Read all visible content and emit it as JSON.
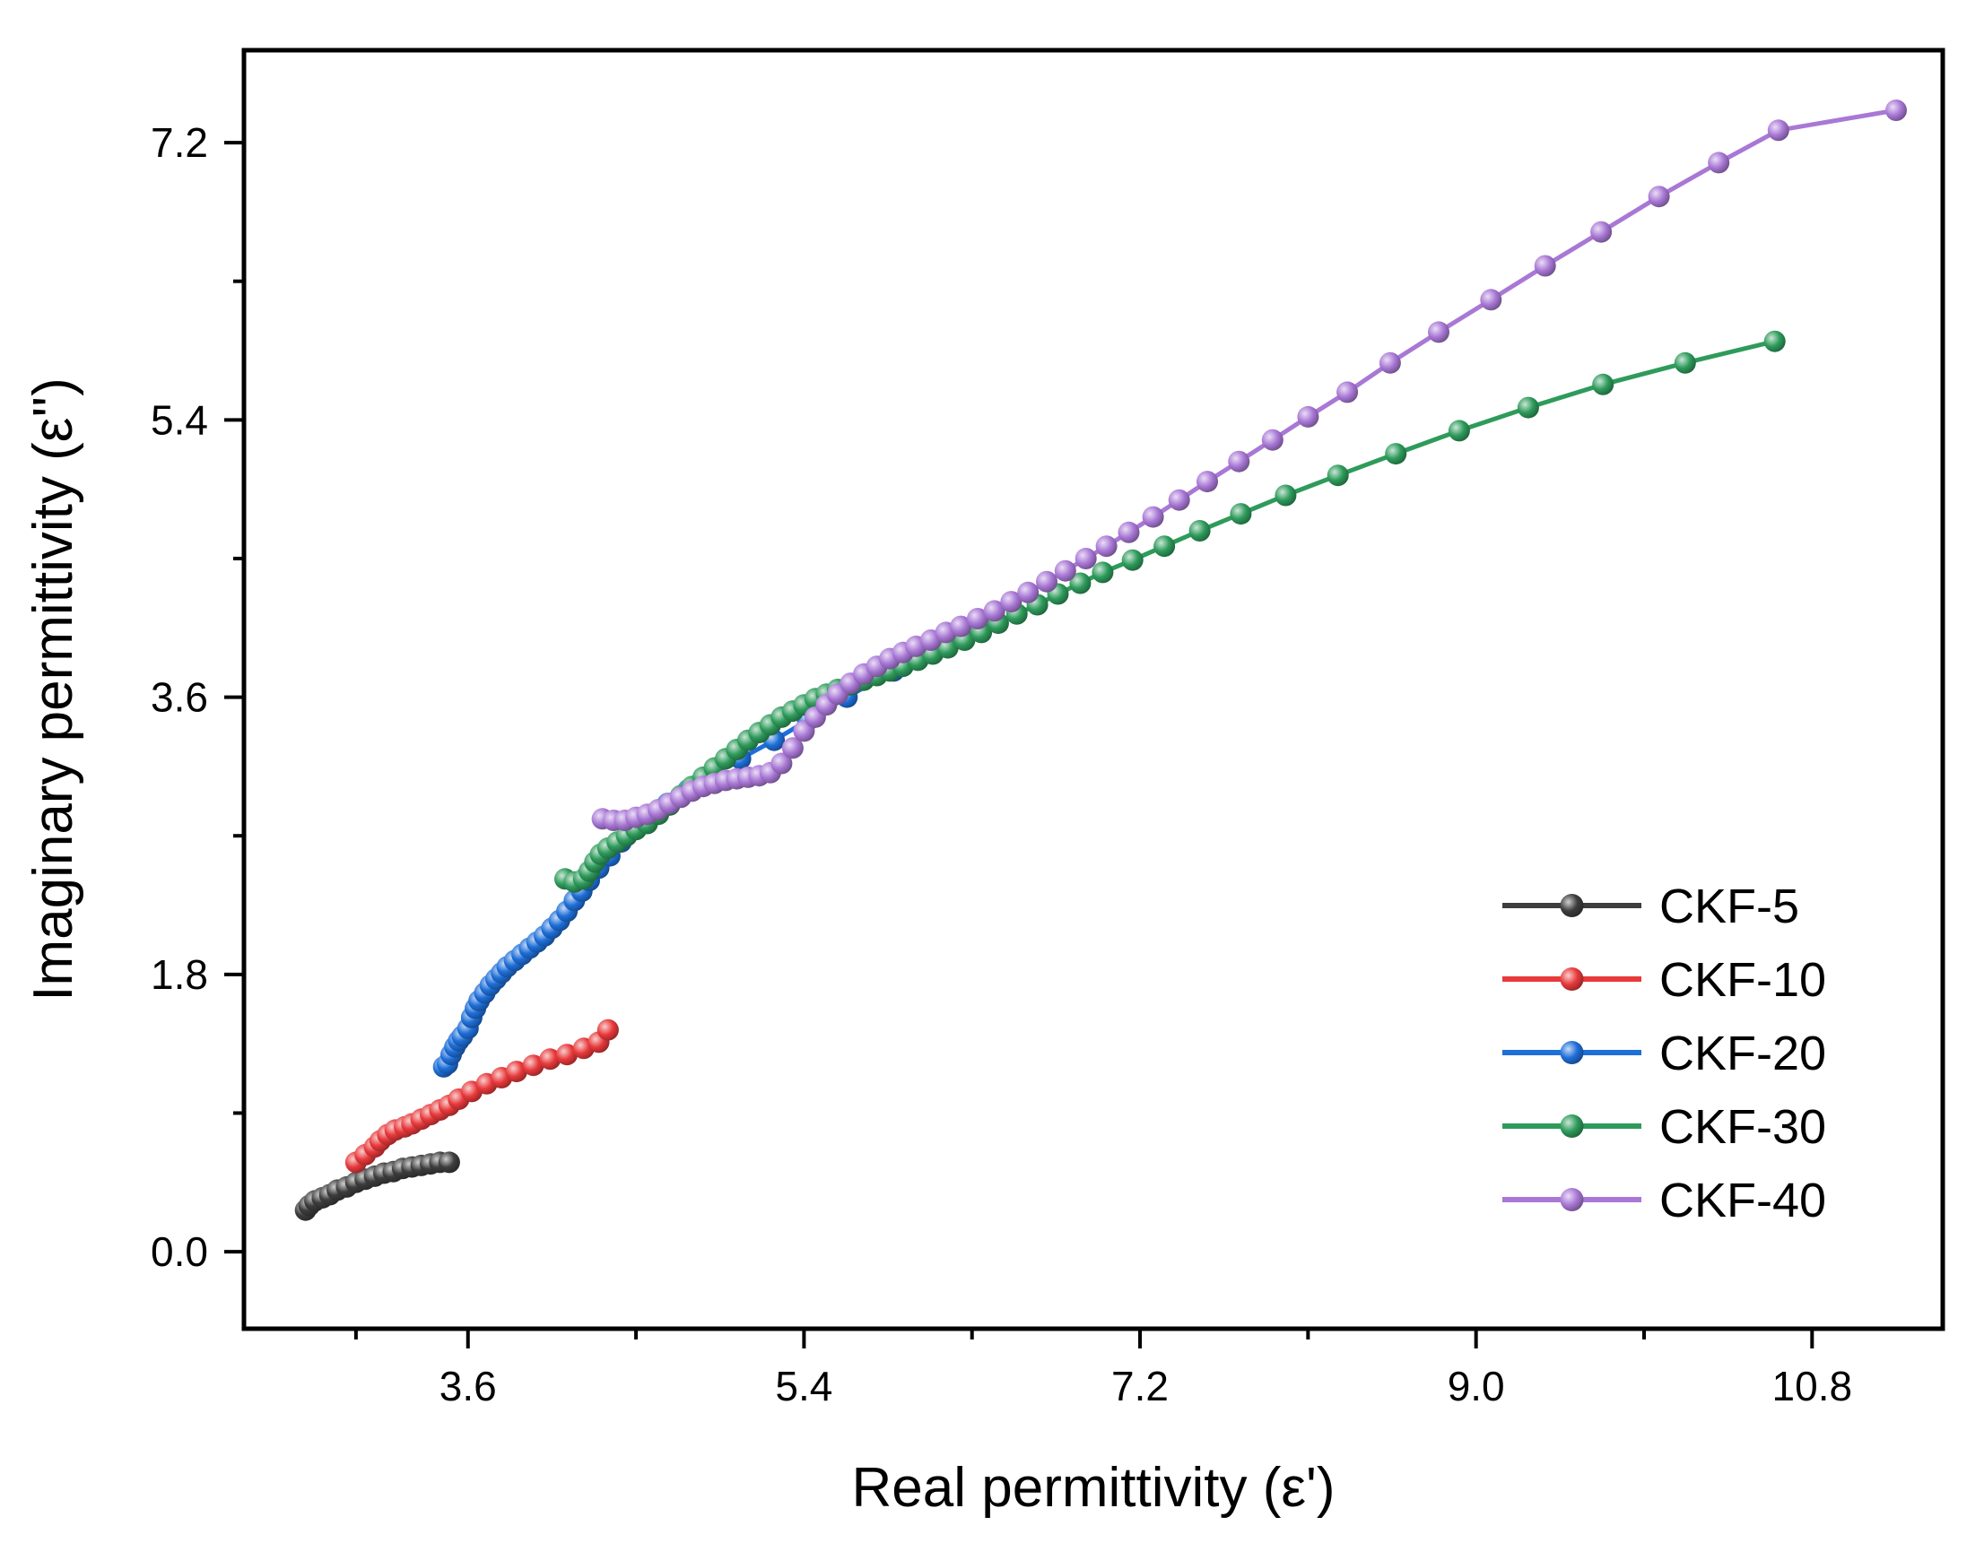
{
  "chart_data": {
    "type": "line",
    "title": "",
    "xlabel": "Real permittivity (ε')",
    "ylabel": "Imaginary permittivity (ε'')",
    "xlim": [
      2.4,
      11.5
    ],
    "ylim": [
      -0.5,
      7.8
    ],
    "xticks": [
      3.6,
      5.4,
      7.2,
      9.0,
      10.8
    ],
    "xtick_labels": [
      "3.6",
      "5.4",
      "7.2",
      "9.0",
      "10.8"
    ],
    "xminor": [
      3.0,
      4.5,
      6.3,
      8.1,
      9.9
    ],
    "yticks": [
      0.0,
      1.8,
      3.6,
      5.4,
      7.2
    ],
    "ytick_labels": [
      "0.0",
      "1.8",
      "3.6",
      "5.4",
      "7.2"
    ],
    "yminor": [
      0.9,
      2.7,
      4.5,
      6.3
    ],
    "grid": false,
    "legend_position": "lower-right",
    "series": [
      {
        "name": "CKF-5",
        "color": "#3d3d3d",
        "x": [
          2.73,
          2.75,
          2.78,
          2.82,
          2.86,
          2.9,
          2.95,
          3.0,
          3.05,
          3.1,
          3.15,
          3.2,
          3.25,
          3.3,
          3.35,
          3.4,
          3.45,
          3.5
        ],
        "y": [
          0.27,
          0.3,
          0.33,
          0.35,
          0.37,
          0.4,
          0.42,
          0.45,
          0.47,
          0.49,
          0.51,
          0.52,
          0.54,
          0.55,
          0.56,
          0.57,
          0.58,
          0.58
        ]
      },
      {
        "name": "CKF-10",
        "color": "#e8393b",
        "x": [
          3.0,
          3.05,
          3.1,
          3.13,
          3.17,
          3.21,
          3.26,
          3.3,
          3.35,
          3.4,
          3.45,
          3.5,
          3.55,
          3.62,
          3.7,
          3.78,
          3.86,
          3.95,
          4.04,
          4.13,
          4.22,
          4.3,
          4.35
        ],
        "y": [
          0.58,
          0.63,
          0.68,
          0.72,
          0.76,
          0.79,
          0.81,
          0.83,
          0.86,
          0.89,
          0.92,
          0.95,
          0.99,
          1.04,
          1.09,
          1.13,
          1.17,
          1.21,
          1.25,
          1.28,
          1.32,
          1.36,
          1.44
        ]
      },
      {
        "name": "CKF-20",
        "color": "#1e6fd9",
        "x": [
          3.47,
          3.49,
          3.51,
          3.53,
          3.55,
          3.57,
          3.6,
          3.62,
          3.64,
          3.66,
          3.69,
          3.72,
          3.75,
          3.78,
          3.81,
          3.85,
          3.89,
          3.93,
          3.97,
          4.01,
          4.05,
          4.09,
          4.13,
          4.17,
          4.21,
          4.25,
          4.3,
          4.36,
          4.42,
          4.49,
          4.57,
          4.67,
          4.78,
          4.91,
          5.06,
          5.24,
          5.42,
          5.63,
          5.88,
          6.14
        ],
        "y": [
          1.2,
          1.22,
          1.28,
          1.33,
          1.37,
          1.4,
          1.45,
          1.52,
          1.58,
          1.63,
          1.68,
          1.73,
          1.77,
          1.81,
          1.85,
          1.89,
          1.93,
          1.97,
          2.01,
          2.05,
          2.1,
          2.15,
          2.21,
          2.28,
          2.34,
          2.41,
          2.49,
          2.57,
          2.66,
          2.74,
          2.82,
          2.91,
          3.0,
          3.1,
          3.2,
          3.32,
          3.45,
          3.6,
          3.77,
          3.95
        ]
      },
      {
        "name": "CKF-30",
        "color": "#2e9b5b",
        "x": [
          4.12,
          4.17,
          4.22,
          4.25,
          4.28,
          4.31,
          4.35,
          4.4,
          4.45,
          4.5,
          4.56,
          4.62,
          4.68,
          4.74,
          4.8,
          4.86,
          4.92,
          4.98,
          5.04,
          5.1,
          5.16,
          5.22,
          5.28,
          5.34,
          5.4,
          5.46,
          5.52,
          5.58,
          5.65,
          5.72,
          5.79,
          5.86,
          5.93,
          6.01,
          6.09,
          6.17,
          6.26,
          6.35,
          6.44,
          6.54,
          6.65,
          6.76,
          6.88,
          7.0,
          7.16,
          7.33,
          7.52,
          7.74,
          7.98,
          8.26,
          8.57,
          8.91,
          9.28,
          9.68,
          10.12,
          10.6
        ],
        "y": [
          2.42,
          2.4,
          2.42,
          2.47,
          2.53,
          2.58,
          2.62,
          2.66,
          2.7,
          2.74,
          2.78,
          2.84,
          2.9,
          2.96,
          3.02,
          3.08,
          3.14,
          3.2,
          3.26,
          3.32,
          3.37,
          3.42,
          3.47,
          3.51,
          3.55,
          3.59,
          3.62,
          3.65,
          3.68,
          3.71,
          3.74,
          3.77,
          3.8,
          3.84,
          3.88,
          3.92,
          3.97,
          4.02,
          4.08,
          4.14,
          4.2,
          4.27,
          4.34,
          4.41,
          4.49,
          4.58,
          4.68,
          4.79,
          4.91,
          5.04,
          5.18,
          5.33,
          5.48,
          5.63,
          5.77,
          5.91
        ]
      },
      {
        "name": "CKF-40",
        "color": "#a978d6",
        "x": [
          4.32,
          4.38,
          4.44,
          4.5,
          4.56,
          4.62,
          4.68,
          4.74,
          4.8,
          4.86,
          4.92,
          4.98,
          5.04,
          5.1,
          5.16,
          5.22,
          5.28,
          5.34,
          5.4,
          5.46,
          5.52,
          5.58,
          5.65,
          5.72,
          5.79,
          5.86,
          5.93,
          6.0,
          6.08,
          6.16,
          6.24,
          6.33,
          6.42,
          6.51,
          6.6,
          6.7,
          6.8,
          6.91,
          7.02,
          7.14,
          7.27,
          7.41,
          7.56,
          7.73,
          7.91,
          8.1,
          8.31,
          8.54,
          8.8,
          9.08,
          9.37,
          9.67,
          9.98,
          10.3,
          10.62,
          11.25
        ],
        "y": [
          2.81,
          2.8,
          2.8,
          2.82,
          2.84,
          2.87,
          2.91,
          2.95,
          2.99,
          3.02,
          3.04,
          3.06,
          3.07,
          3.08,
          3.09,
          3.11,
          3.17,
          3.27,
          3.38,
          3.47,
          3.55,
          3.62,
          3.69,
          3.75,
          3.8,
          3.85,
          3.89,
          3.93,
          3.97,
          4.02,
          4.06,
          4.11,
          4.16,
          4.22,
          4.28,
          4.35,
          4.42,
          4.5,
          4.58,
          4.67,
          4.77,
          4.88,
          5.0,
          5.13,
          5.27,
          5.42,
          5.58,
          5.77,
          5.97,
          6.18,
          6.4,
          6.62,
          6.85,
          7.07,
          7.28,
          7.41
        ]
      }
    ]
  }
}
